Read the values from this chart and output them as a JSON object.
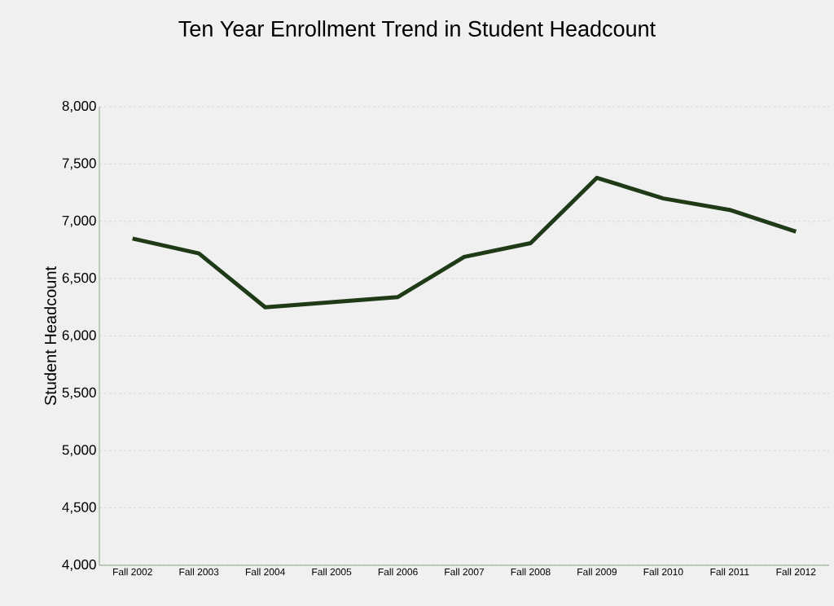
{
  "chart_data": {
    "type": "line",
    "title": "Ten Year Enrollment Trend in Student Headcount",
    "ylabel": "Student Headcount",
    "categories": [
      "Fall 2002",
      "Fall 2003",
      "Fall 2004",
      "Fall 2005",
      "Fall 2006",
      "Fall 2007",
      "Fall 2008",
      "Fall 2009",
      "Fall 2010",
      "Fall 2011",
      "Fall 2012"
    ],
    "series": [
      {
        "color": "#1f3a17",
        "values": [
          6850,
          6720,
          6250,
          6295,
          6340,
          6690,
          6810,
          7380,
          7200,
          7100,
          6910
        ]
      }
    ],
    "ylim": [
      4000,
      8000
    ],
    "yticks": [
      {
        "value": 4000,
        "label": "4,000"
      },
      {
        "value": 4500,
        "label": "4,500"
      },
      {
        "value": 5000,
        "label": "5,000"
      },
      {
        "value": 5500,
        "label": "5,500"
      },
      {
        "value": 6000,
        "label": "6,000"
      },
      {
        "value": 6500,
        "label": "6,500"
      },
      {
        "value": 7000,
        "label": "7,000"
      },
      {
        "value": 7500,
        "label": "7,500"
      },
      {
        "value": 8000,
        "label": "8,000"
      }
    ],
    "grid": "y",
    "marker": "none",
    "line_style": "solid"
  }
}
